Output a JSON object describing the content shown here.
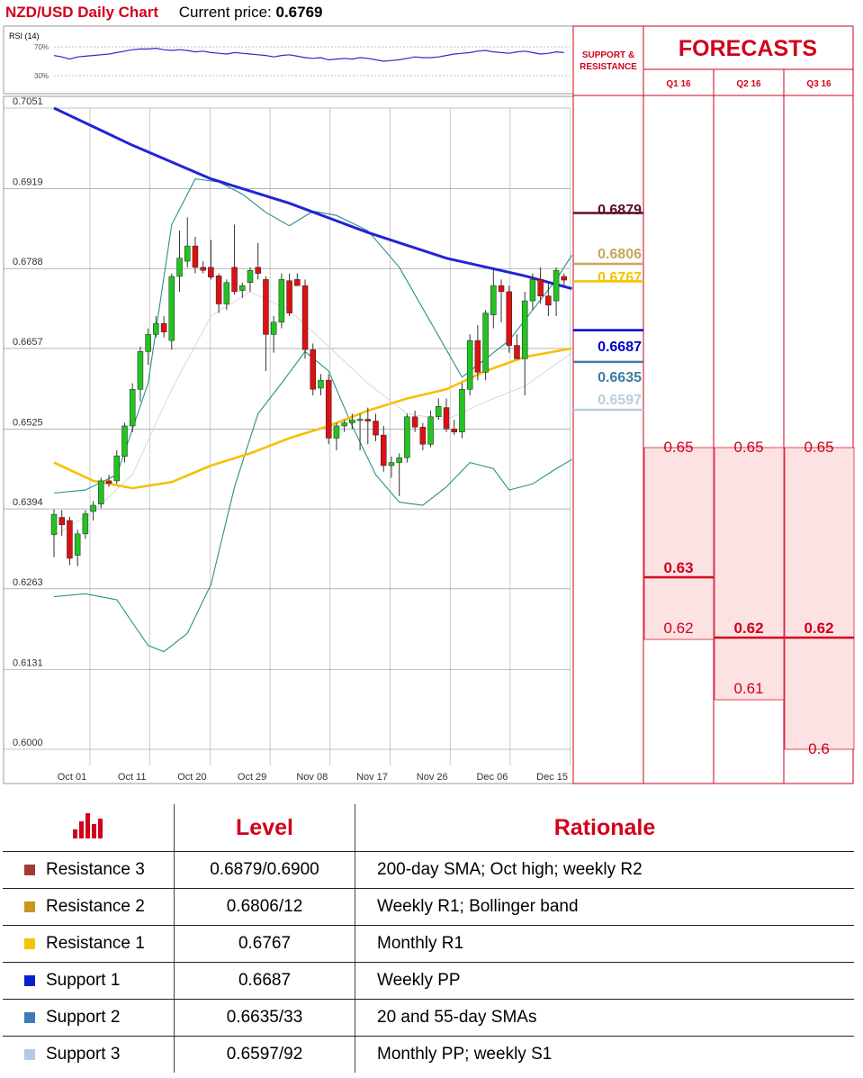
{
  "header": {
    "title": "NZD/USD Daily Chart",
    "price_label": "Current price:",
    "price": "0.6769"
  },
  "rsi": {
    "label": "RSI (14)",
    "level_high": "70%",
    "level_low": "30%"
  },
  "columns": {
    "sr_header": "SUPPORT & RESISTANCE",
    "forecasts_title": "FORECASTS",
    "quarters": [
      "Q1 16",
      "Q2 16",
      "Q3 16"
    ]
  },
  "chart_data": {
    "type": "candlestick",
    "instrument": "NZD/USD",
    "ylim": [
      0.6,
      0.7051
    ],
    "y_ticks": [
      "0.7051",
      "0.6919",
      "0.6788",
      "0.6657",
      "0.6525",
      "0.6394",
      "0.6263",
      "0.6131",
      "0.6000"
    ],
    "x_ticks": [
      "Oct 01",
      "Oct 11",
      "Oct 20",
      "Oct 29",
      "Nov 08",
      "Nov 17",
      "Nov 26",
      "Dec 06",
      "Dec 15"
    ],
    "candles": [
      {
        "o": 0.6352,
        "h": 0.6393,
        "l": 0.6315,
        "c": 0.6385
      },
      {
        "o": 0.638,
        "h": 0.6392,
        "l": 0.635,
        "c": 0.6368
      },
      {
        "o": 0.6375,
        "h": 0.6381,
        "l": 0.6302,
        "c": 0.6313
      },
      {
        "o": 0.6318,
        "h": 0.636,
        "l": 0.63,
        "c": 0.6353
      },
      {
        "o": 0.6353,
        "h": 0.6392,
        "l": 0.6345,
        "c": 0.6386
      },
      {
        "o": 0.639,
        "h": 0.6407,
        "l": 0.6375,
        "c": 0.64
      },
      {
        "o": 0.6402,
        "h": 0.6445,
        "l": 0.6395,
        "c": 0.644
      },
      {
        "o": 0.644,
        "h": 0.645,
        "l": 0.643,
        "c": 0.6436
      },
      {
        "o": 0.644,
        "h": 0.649,
        "l": 0.6435,
        "c": 0.6481
      },
      {
        "o": 0.648,
        "h": 0.6535,
        "l": 0.647,
        "c": 0.653
      },
      {
        "o": 0.653,
        "h": 0.66,
        "l": 0.652,
        "c": 0.659
      },
      {
        "o": 0.659,
        "h": 0.666,
        "l": 0.657,
        "c": 0.6652
      },
      {
        "o": 0.6652,
        "h": 0.669,
        "l": 0.663,
        "c": 0.668
      },
      {
        "o": 0.668,
        "h": 0.671,
        "l": 0.6675,
        "c": 0.6698
      },
      {
        "o": 0.6698,
        "h": 0.671,
        "l": 0.6675,
        "c": 0.6684
      },
      {
        "o": 0.667,
        "h": 0.678,
        "l": 0.6655,
        "c": 0.6775
      },
      {
        "o": 0.6775,
        "h": 0.685,
        "l": 0.675,
        "c": 0.6805
      },
      {
        "o": 0.68,
        "h": 0.6872,
        "l": 0.679,
        "c": 0.6825
      },
      {
        "o": 0.6825,
        "h": 0.684,
        "l": 0.678,
        "c": 0.679
      },
      {
        "o": 0.679,
        "h": 0.68,
        "l": 0.678,
        "c": 0.6785
      },
      {
        "o": 0.679,
        "h": 0.6835,
        "l": 0.677,
        "c": 0.6774
      },
      {
        "o": 0.6776,
        "h": 0.678,
        "l": 0.6715,
        "c": 0.673
      },
      {
        "o": 0.673,
        "h": 0.677,
        "l": 0.672,
        "c": 0.6765
      },
      {
        "o": 0.679,
        "h": 0.686,
        "l": 0.6745,
        "c": 0.675
      },
      {
        "o": 0.6752,
        "h": 0.6765,
        "l": 0.674,
        "c": 0.676
      },
      {
        "o": 0.6765,
        "h": 0.679,
        "l": 0.675,
        "c": 0.6785
      },
      {
        "o": 0.679,
        "h": 0.683,
        "l": 0.677,
        "c": 0.678
      },
      {
        "o": 0.677,
        "h": 0.6775,
        "l": 0.662,
        "c": 0.668
      },
      {
        "o": 0.668,
        "h": 0.671,
        "l": 0.665,
        "c": 0.67
      },
      {
        "o": 0.67,
        "h": 0.678,
        "l": 0.669,
        "c": 0.677
      },
      {
        "o": 0.6768,
        "h": 0.678,
        "l": 0.671,
        "c": 0.6715
      },
      {
        "o": 0.677,
        "h": 0.678,
        "l": 0.676,
        "c": 0.676
      },
      {
        "o": 0.676,
        "h": 0.677,
        "l": 0.664,
        "c": 0.6655
      },
      {
        "o": 0.6655,
        "h": 0.6665,
        "l": 0.658,
        "c": 0.659
      },
      {
        "o": 0.6592,
        "h": 0.6615,
        "l": 0.658,
        "c": 0.6605
      },
      {
        "o": 0.6605,
        "h": 0.6615,
        "l": 0.65,
        "c": 0.651
      },
      {
        "o": 0.651,
        "h": 0.6535,
        "l": 0.649,
        "c": 0.653
      },
      {
        "o": 0.653,
        "h": 0.654,
        "l": 0.652,
        "c": 0.6535
      },
      {
        "o": 0.6535,
        "h": 0.655,
        "l": 0.6525,
        "c": 0.654
      },
      {
        "o": 0.654,
        "h": 0.655,
        "l": 0.649,
        "c": 0.6541
      },
      {
        "o": 0.6541,
        "h": 0.656,
        "l": 0.65,
        "c": 0.6538
      },
      {
        "o": 0.6538,
        "h": 0.655,
        "l": 0.6505,
        "c": 0.6515
      },
      {
        "o": 0.6515,
        "h": 0.653,
        "l": 0.6455,
        "c": 0.6465
      },
      {
        "o": 0.6465,
        "h": 0.648,
        "l": 0.6445,
        "c": 0.647
      },
      {
        "o": 0.647,
        "h": 0.6485,
        "l": 0.6415,
        "c": 0.6478
      },
      {
        "o": 0.6478,
        "h": 0.655,
        "l": 0.647,
        "c": 0.6545
      },
      {
        "o": 0.6545,
        "h": 0.6555,
        "l": 0.652,
        "c": 0.6528
      },
      {
        "o": 0.6528,
        "h": 0.6535,
        "l": 0.649,
        "c": 0.65
      },
      {
        "o": 0.65,
        "h": 0.6555,
        "l": 0.6495,
        "c": 0.6545
      },
      {
        "o": 0.6545,
        "h": 0.6575,
        "l": 0.654,
        "c": 0.6562
      },
      {
        "o": 0.656,
        "h": 0.6575,
        "l": 0.652,
        "c": 0.6525
      },
      {
        "o": 0.6525,
        "h": 0.654,
        "l": 0.6515,
        "c": 0.652
      },
      {
        "o": 0.652,
        "h": 0.66,
        "l": 0.651,
        "c": 0.659
      },
      {
        "o": 0.659,
        "h": 0.668,
        "l": 0.658,
        "c": 0.667
      },
      {
        "o": 0.667,
        "h": 0.6695,
        "l": 0.6605,
        "c": 0.6618
      },
      {
        "o": 0.6618,
        "h": 0.672,
        "l": 0.6605,
        "c": 0.6715
      },
      {
        "o": 0.6712,
        "h": 0.679,
        "l": 0.669,
        "c": 0.676
      },
      {
        "o": 0.676,
        "h": 0.677,
        "l": 0.67,
        "c": 0.675
      },
      {
        "o": 0.675,
        "h": 0.676,
        "l": 0.665,
        "c": 0.6662
      },
      {
        "o": 0.6662,
        "h": 0.668,
        "l": 0.664,
        "c": 0.664
      },
      {
        "o": 0.664,
        "h": 0.675,
        "l": 0.658,
        "c": 0.6735
      },
      {
        "o": 0.6735,
        "h": 0.678,
        "l": 0.672,
        "c": 0.677
      },
      {
        "o": 0.677,
        "h": 0.679,
        "l": 0.673,
        "c": 0.6743
      },
      {
        "o": 0.6743,
        "h": 0.6765,
        "l": 0.671,
        "c": 0.6728
      },
      {
        "o": 0.6735,
        "h": 0.679,
        "l": 0.671,
        "c": 0.6785
      },
      {
        "o": 0.6775,
        "h": 0.678,
        "l": 0.676,
        "c": 0.6769
      }
    ],
    "sma200": [
      [
        0,
        0.7051
      ],
      [
        10,
        0.699
      ],
      [
        20,
        0.6935
      ],
      [
        30,
        0.6895
      ],
      [
        40,
        0.6847
      ],
      [
        50,
        0.6805
      ],
      [
        60,
        0.6776
      ],
      [
        66,
        0.6755
      ]
    ],
    "sma55": [
      [
        0,
        0.647
      ],
      [
        5,
        0.644
      ],
      [
        10,
        0.6428
      ],
      [
        15,
        0.6438
      ],
      [
        20,
        0.6465
      ],
      [
        25,
        0.6485
      ],
      [
        30,
        0.651
      ],
      [
        35,
        0.653
      ],
      [
        40,
        0.6555
      ],
      [
        45,
        0.6575
      ],
      [
        50,
        0.659
      ],
      [
        55,
        0.662
      ],
      [
        60,
        0.6643
      ],
      [
        66,
        0.6657
      ]
    ],
    "sma20": [
      [
        0,
        0.635
      ],
      [
        5,
        0.639
      ],
      [
        10,
        0.645
      ],
      [
        15,
        0.659
      ],
      [
        20,
        0.671
      ],
      [
        25,
        0.675
      ],
      [
        30,
        0.672
      ],
      [
        35,
        0.666
      ],
      [
        40,
        0.66
      ],
      [
        45,
        0.655
      ],
      [
        50,
        0.654
      ],
      [
        55,
        0.657
      ],
      [
        60,
        0.6595
      ],
      [
        66,
        0.665
      ]
    ],
    "bollinger_upper": [
      [
        0,
        0.642
      ],
      [
        4,
        0.6425
      ],
      [
        8,
        0.645
      ],
      [
        12,
        0.66
      ],
      [
        15,
        0.686
      ],
      [
        18,
        0.6935
      ],
      [
        21,
        0.693
      ],
      [
        24,
        0.691
      ],
      [
        27,
        0.688
      ],
      [
        30,
        0.6858
      ],
      [
        33,
        0.6882
      ],
      [
        36,
        0.6875
      ],
      [
        40,
        0.685
      ],
      [
        44,
        0.679
      ],
      [
        48,
        0.67
      ],
      [
        52,
        0.661
      ],
      [
        55,
        0.664
      ],
      [
        58,
        0.667
      ],
      [
        61,
        0.672
      ],
      [
        64,
        0.677
      ],
      [
        66,
        0.681
      ]
    ],
    "bollinger_lower": [
      [
        0,
        0.625
      ],
      [
        4,
        0.6255
      ],
      [
        8,
        0.6245
      ],
      [
        12,
        0.617
      ],
      [
        14,
        0.616
      ],
      [
        17,
        0.619
      ],
      [
        20,
        0.627
      ],
      [
        23,
        0.643
      ],
      [
        26,
        0.655
      ],
      [
        29,
        0.66
      ],
      [
        32,
        0.6652
      ],
      [
        35,
        0.662
      ],
      [
        38,
        0.653
      ],
      [
        41,
        0.645
      ],
      [
        44,
        0.6405
      ],
      [
        47,
        0.64
      ],
      [
        50,
        0.643
      ],
      [
        53,
        0.647
      ],
      [
        56,
        0.646
      ],
      [
        58,
        0.6425
      ],
      [
        61,
        0.6435
      ],
      [
        64,
        0.646
      ],
      [
        66,
        0.6475
      ]
    ],
    "rsi_series": [
      58,
      56,
      53,
      56,
      57,
      58,
      59,
      60,
      62,
      64,
      66,
      67,
      67,
      68,
      66,
      65,
      66,
      65,
      63,
      64,
      62,
      61,
      60,
      62,
      61,
      60,
      59,
      58,
      56,
      58,
      59,
      57,
      55,
      54,
      55,
      52,
      53,
      54,
      53,
      55,
      54,
      52,
      50,
      51,
      52,
      54,
      56,
      55,
      55,
      56,
      58,
      60,
      61,
      62,
      64,
      65,
      63,
      62,
      61,
      63,
      64,
      62,
      60,
      61,
      63,
      62
    ],
    "support_resistance": [
      {
        "value": "0.6879",
        "color": "#5a0e2c",
        "name": "Resistance 3"
      },
      {
        "value": "0.6806",
        "color": "#c9a65a",
        "name": "Resistance 2"
      },
      {
        "value": "0.6767",
        "color": "#f2c400",
        "name": "Resistance 1"
      },
      {
        "value": "0.6687",
        "color": "#0000cc",
        "name": "Support 1"
      },
      {
        "value": "0.6635",
        "color": "#3a7fa0",
        "name": "Support 2"
      },
      {
        "value": "0.6597",
        "color": "#b7d0d8",
        "name": "Support 3"
      }
    ],
    "forecasts": {
      "Q1 16": [
        {
          "value": "0.65",
          "mode": false
        },
        {
          "value": "0.63",
          "mode": true
        },
        {
          "value": "0.62",
          "mode": false
        }
      ],
      "Q2 16": [
        {
          "value": "0.65",
          "mode": false
        },
        {
          "value": "0.62",
          "mode": true
        },
        {
          "value": "0.61",
          "mode": false
        }
      ],
      "Q3 16": [
        {
          "value": "0.65",
          "mode": false
        },
        {
          "value": "0.62",
          "mode": true
        },
        {
          "value": "0.6",
          "mode": false
        }
      ]
    }
  },
  "levels_table": {
    "headers": [
      "Level",
      "Rationale"
    ],
    "rows": [
      {
        "name": "Resistance 3",
        "swatch": "#a33a35",
        "level": "0.6879/0.6900",
        "rationale": "200-day SMA; Oct high; weekly R2"
      },
      {
        "name": "Resistance 2",
        "swatch": "#c8961b",
        "level": "0.6806/12",
        "rationale": "Weekly R1; Bollinger band"
      },
      {
        "name": "Resistance 1",
        "swatch": "#f5c400",
        "level": "0.6767",
        "rationale": "Monthly R1"
      },
      {
        "name": "Support 1",
        "swatch": "#0b1fd0",
        "level": "0.6687",
        "rationale": "Weekly PP"
      },
      {
        "name": "Support 2",
        "swatch": "#3e7bb5",
        "level": "0.6635/33",
        "rationale": "20 and 55-day SMAs"
      },
      {
        "name": "Support 3",
        "swatch": "#b3c9e6",
        "level": "0.6597/92",
        "rationale": "Monthly PP; weekly S1"
      }
    ]
  },
  "colors": {
    "brand": "#d0021b",
    "bull": "#22c322",
    "bear": "#dd1111",
    "sma200": "#2323d6",
    "sma55": "#f5c000",
    "bollinger": "#2a8f8a"
  }
}
